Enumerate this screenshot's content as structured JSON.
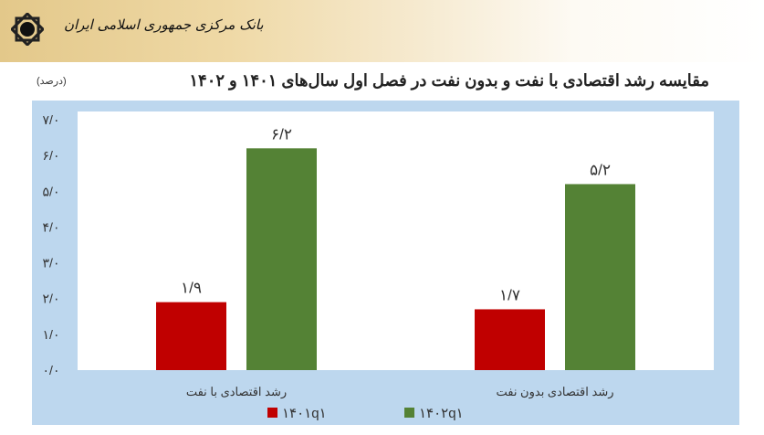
{
  "header": {
    "bank_name": "بانک مرکزی جمهوری اسلامی ایران",
    "logo": "central-bank-logo"
  },
  "title": "مقایسه رشد اقتصادی با نفت و بدون نفت در فصل اول سال‌های ۱۴۰۱ و ۱۴۰۲",
  "unit": "(درصد)",
  "colors": {
    "panel": "#bdd7ee",
    "plot": "#ffffff",
    "series_1401": "#c00000",
    "series_1402": "#548235"
  },
  "chart_data": {
    "type": "bar",
    "title": "مقایسه رشد اقتصادی با نفت و بدون نفت در فصل اول سال‌های ۱۴۰۱ و ۱۴۰۲",
    "ylabel": "(درصد)",
    "categories": [
      "رشد اقتصادی با نفت",
      "رشد اقتصادی بدون نفت"
    ],
    "series": [
      {
        "name": "۱۴۰۱q۱",
        "values": [
          1.9,
          1.7
        ],
        "labels": [
          "۱/۹",
          "۱/۷"
        ],
        "color": "#c00000"
      },
      {
        "name": "۱۴۰۲q۱",
        "values": [
          6.2,
          5.2
        ],
        "labels": [
          "۶/۲",
          "۵/۲"
        ],
        "color": "#548235"
      }
    ],
    "ylim": [
      0,
      7
    ],
    "yticks": [
      0,
      1,
      2,
      3,
      4,
      5,
      6,
      7
    ],
    "ytick_labels": [
      "۰/۰",
      "۱/۰",
      "۲/۰",
      "۳/۰",
      "۴/۰",
      "۵/۰",
      "۶/۰",
      "۷/۰"
    ],
    "grid": false,
    "legend": "bottom"
  }
}
